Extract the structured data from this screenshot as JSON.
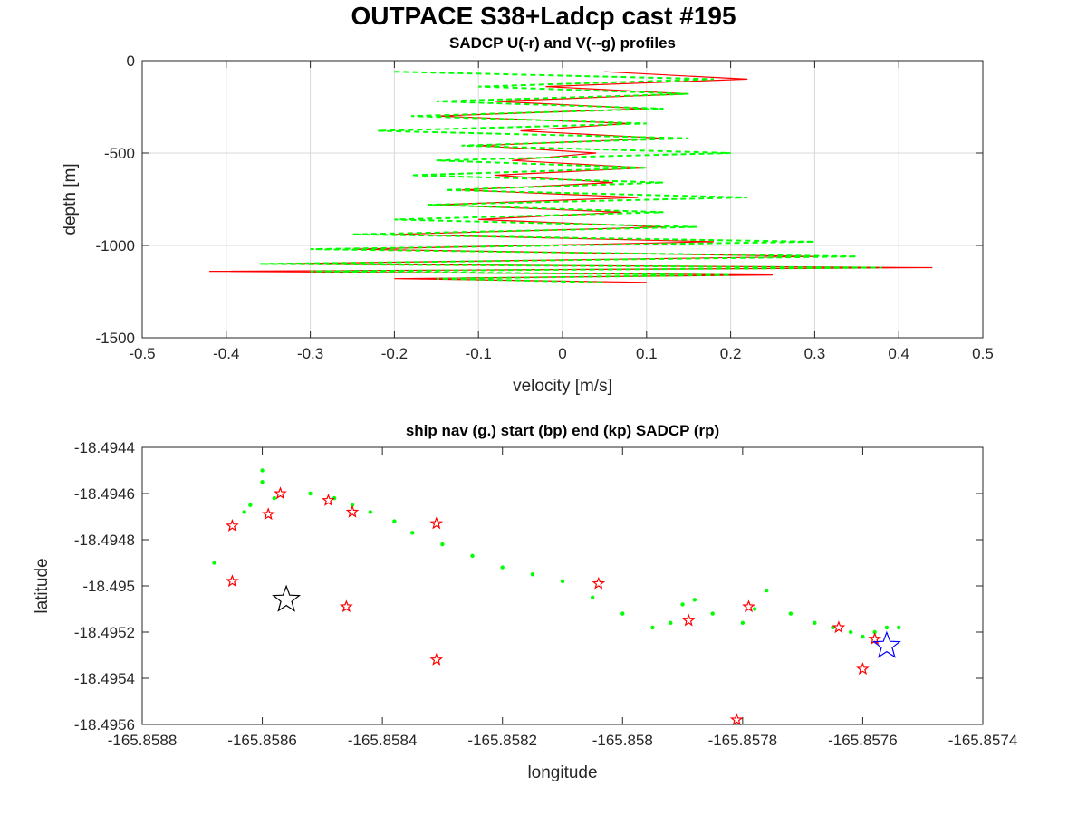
{
  "figure": {
    "title": "OUTPACE S38+Ladcp cast #195"
  },
  "colors": {
    "u_line": "#ff0000",
    "v_line": "#00ff00",
    "nav_points": "#00ff00",
    "sadcp_star": "#ff0000",
    "start_star": "#0000ff",
    "end_star": "#000000",
    "grid": "#d9d9d9",
    "axes": "#262626"
  },
  "chart_data": [
    {
      "type": "line",
      "title": "SADCP U(-r) and V(--g) profiles",
      "xlabel": "velocity [m/s]",
      "ylabel": "depth [m]",
      "xlim": [
        -0.5,
        0.5
      ],
      "ylim": [
        -1500,
        0
      ],
      "xticks": [
        -0.5,
        -0.4,
        -0.3,
        -0.2,
        -0.1,
        0,
        0.1,
        0.2,
        0.3,
        0.4,
        0.5
      ],
      "xtick_labels": [
        "-0.5",
        "-0.4",
        "-0.3",
        "-0.2",
        "-0.1",
        "0",
        "0.1",
        "0.2",
        "0.3",
        "0.4",
        "0.5"
      ],
      "yticks": [
        0,
        -500,
        -1000,
        -1500
      ],
      "ytick_labels": [
        "0",
        "-500",
        "-1000",
        "-1500"
      ],
      "grid": true,
      "series": [
        {
          "name": "U",
          "style": "solid",
          "color": "red",
          "depth": [
            -60,
            -100,
            -140,
            -180,
            -220,
            -260,
            -300,
            -340,
            -380,
            -420,
            -460,
            -500,
            -540,
            -580,
            -620,
            -660,
            -700,
            -740,
            -780,
            -820,
            -860,
            -900,
            -940,
            -980,
            -1020,
            -1060,
            -1100,
            -1120,
            -1140,
            -1160,
            -1180,
            -1200
          ],
          "values": [
            0.05,
            0.22,
            -0.02,
            0.15,
            -0.08,
            0.1,
            -0.15,
            0.08,
            -0.05,
            0.12,
            -0.1,
            0.04,
            -0.06,
            0.1,
            -0.08,
            0.06,
            -0.12,
            0.09,
            -0.15,
            0.07,
            -0.1,
            0.12,
            -0.2,
            0.18,
            -0.25,
            0.3,
            -0.35,
            0.44,
            -0.42,
            0.25,
            -0.2,
            0.1
          ]
        },
        {
          "name": "V",
          "style": "dashed",
          "color": "green",
          "depth": [
            -60,
            -100,
            -140,
            -180,
            -220,
            -260,
            -300,
            -340,
            -380,
            -420,
            -460,
            -500,
            -540,
            -580,
            -620,
            -660,
            -700,
            -740,
            -780,
            -820,
            -860,
            -900,
            -940,
            -980,
            -1020,
            -1060,
            -1100,
            -1120,
            -1140,
            -1160,
            -1180,
            -1200
          ],
          "values": [
            -0.2,
            0.18,
            -0.1,
            0.15,
            -0.15,
            0.12,
            -0.18,
            0.1,
            -0.22,
            0.15,
            -0.12,
            0.2,
            -0.15,
            0.1,
            -0.18,
            0.12,
            -0.14,
            0.22,
            -0.16,
            0.12,
            -0.2,
            0.16,
            -0.25,
            0.3,
            -0.3,
            0.35,
            -0.36,
            0.38,
            -0.3,
            0.2,
            -0.15,
            0.05
          ]
        }
      ]
    },
    {
      "type": "scatter",
      "title": "ship nav (g.) start (bp) end (kp) SADCP (rp)",
      "xlabel": "longitude",
      "ylabel": "latitude",
      "xlim": [
        -165.8588,
        -165.8574
      ],
      "ylim": [
        -18.4956,
        -18.4944
      ],
      "xticks": [
        -165.8588,
        -165.8586,
        -165.8584,
        -165.8582,
        -165.858,
        -165.8578,
        -165.8576,
        -165.8574
      ],
      "xtick_labels": [
        "-165.8588",
        "-165.8586",
        "-165.8584",
        "-165.8582",
        "-165.858",
        "-165.8578",
        "-165.8576",
        "-165.8574"
      ],
      "yticks": [
        -18.4944,
        -18.4946,
        -18.4948,
        -18.495,
        -18.4952,
        -18.4954,
        -18.4956
      ],
      "ytick_labels": [
        "-18.4944",
        "-18.4946",
        "-18.4948",
        "-18.495",
        "-18.4952",
        "-18.4954",
        "-18.4956"
      ],
      "grid": false,
      "ship_nav": {
        "lon": [
          -165.85868,
          -165.85862,
          -165.8586,
          -165.85858,
          -165.85852,
          -165.85848,
          -165.85845,
          -165.85842,
          -165.85838,
          -165.85835,
          -165.8583,
          -165.85825,
          -165.8582,
          -165.85815,
          -165.8581,
          -165.85805,
          -165.858,
          -165.85795,
          -165.85792,
          -165.8579,
          -165.85788,
          -165.85785,
          -165.8578,
          -165.85778,
          -165.85776,
          -165.85772,
          -165.85768,
          -165.85765,
          -165.85762,
          -165.8576,
          -165.85758,
          -165.85756,
          -165.85754,
          -165.85863,
          -165.8586
        ],
        "lat": [
          -18.4949,
          -18.49465,
          -18.49455,
          -18.49462,
          -18.4946,
          -18.49462,
          -18.49465,
          -18.49468,
          -18.49472,
          -18.49477,
          -18.49482,
          -18.49487,
          -18.49492,
          -18.49495,
          -18.49498,
          -18.49505,
          -18.49512,
          -18.49518,
          -18.49516,
          -18.49508,
          -18.49506,
          -18.49512,
          -18.49516,
          -18.4951,
          -18.49502,
          -18.49512,
          -18.49516,
          -18.49518,
          -18.4952,
          -18.49522,
          -18.4952,
          -18.49518,
          -18.49518,
          -18.49468,
          -18.4945
        ]
      },
      "sadcp": {
        "lon": [
          -165.85865,
          -165.85859,
          -165.85857,
          -165.85849,
          -165.85845,
          -165.85831,
          -165.85865,
          -165.85846,
          -165.85831,
          -165.85804,
          -165.85789,
          -165.85779,
          -165.85781,
          -165.85764,
          -165.85758,
          -165.8576
        ],
        "lat": [
          -18.49474,
          -18.49469,
          -18.4946,
          -18.49463,
          -18.49468,
          -18.49473,
          -18.49498,
          -18.49509,
          -18.49532,
          -18.49499,
          -18.49515,
          -18.49509,
          -18.49558,
          -18.49518,
          -18.49523,
          -18.49536
        ]
      },
      "start": {
        "lon": -165.85756,
        "lat": -18.49526
      },
      "end": {
        "lon": -165.85856,
        "lat": -18.49506
      }
    }
  ]
}
